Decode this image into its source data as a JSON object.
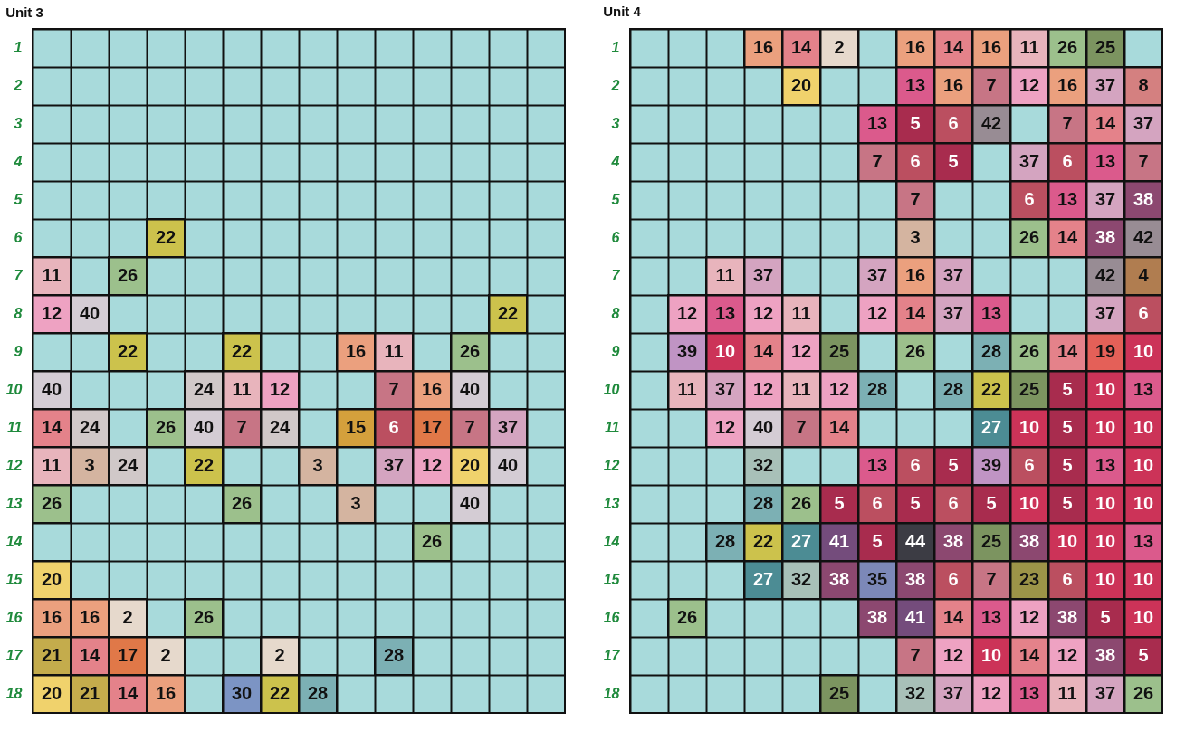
{
  "chart_data": [
    {
      "type": "heatmap",
      "title": "Unit 3",
      "data_labels": true,
      "grid": true,
      "categories": [
        null,
        null,
        null,
        null,
        null,
        null,
        null,
        null,
        null,
        null,
        null,
        null,
        null,
        null
      ],
      "y_categories": [
        "1",
        "2",
        "3",
        "4",
        "5",
        "6",
        "7",
        "8",
        "9",
        "10",
        "11",
        "12",
        "13",
        "14",
        "15",
        "16",
        "17",
        "18"
      ],
      "cells": [
        [
          null,
          null,
          null,
          null,
          null,
          null,
          null,
          null,
          null,
          null,
          null,
          null,
          null,
          null
        ],
        [
          null,
          null,
          null,
          null,
          null,
          null,
          null,
          null,
          null,
          null,
          null,
          null,
          null,
          null
        ],
        [
          null,
          null,
          null,
          null,
          null,
          null,
          null,
          null,
          null,
          null,
          null,
          null,
          null,
          null
        ],
        [
          null,
          null,
          null,
          null,
          null,
          null,
          null,
          null,
          null,
          null,
          null,
          null,
          null,
          null
        ],
        [
          null,
          null,
          null,
          null,
          null,
          null,
          null,
          null,
          null,
          null,
          null,
          null,
          null,
          null
        ],
        [
          null,
          null,
          null,
          22,
          null,
          null,
          null,
          null,
          null,
          null,
          null,
          null,
          null,
          null
        ],
        [
          11,
          null,
          26,
          null,
          null,
          null,
          null,
          null,
          null,
          null,
          null,
          null,
          null,
          null
        ],
        [
          12,
          40,
          null,
          null,
          null,
          null,
          null,
          null,
          null,
          null,
          null,
          null,
          22,
          null
        ],
        [
          null,
          null,
          22,
          null,
          null,
          22,
          null,
          null,
          16,
          11,
          null,
          26,
          null,
          null
        ],
        [
          40,
          null,
          null,
          null,
          24,
          11,
          12,
          null,
          null,
          7,
          16,
          40,
          null,
          null
        ],
        [
          14,
          24,
          null,
          26,
          40,
          7,
          24,
          null,
          15,
          6,
          17,
          7,
          37,
          null
        ],
        [
          11,
          3,
          24,
          null,
          22,
          null,
          null,
          3,
          null,
          37,
          12,
          20,
          40,
          null
        ],
        [
          26,
          null,
          null,
          null,
          null,
          26,
          null,
          null,
          3,
          null,
          null,
          40,
          null,
          null
        ],
        [
          null,
          null,
          null,
          null,
          null,
          null,
          null,
          null,
          null,
          null,
          26,
          null,
          null,
          null
        ],
        [
          20,
          null,
          null,
          null,
          null,
          null,
          null,
          null,
          null,
          null,
          null,
          null,
          null,
          null
        ],
        [
          16,
          16,
          2,
          null,
          26,
          null,
          null,
          null,
          null,
          null,
          null,
          null,
          null,
          null
        ],
        [
          21,
          14,
          17,
          2,
          null,
          null,
          2,
          null,
          null,
          28,
          null,
          null,
          null,
          null
        ],
        [
          20,
          21,
          14,
          16,
          null,
          30,
          22,
          28,
          null,
          null,
          null,
          null,
          null,
          null
        ]
      ],
      "colors": [
        [
          "#a8dadb",
          "#a8dadb",
          "#a8dadb",
          "#a8dadb",
          "#a8dadb",
          "#a8dadb",
          "#a8dadb",
          "#a8dadb",
          "#a8dadb",
          "#a8dadb",
          "#a8dadb",
          "#a8dadb",
          "#a8dadb",
          "#a8dadb"
        ],
        [
          "#a8dadb",
          "#a8dadb",
          "#a8dadb",
          "#a8dadb",
          "#a8dadb",
          "#a8dadb",
          "#a8dadb",
          "#a8dadb",
          "#a8dadb",
          "#a8dadb",
          "#a8dadb",
          "#a8dadb",
          "#a8dadb",
          "#a8dadb"
        ],
        [
          "#a8dadb",
          "#a8dadb",
          "#a8dadb",
          "#a8dadb",
          "#a8dadb",
          "#a8dadb",
          "#a8dadb",
          "#a8dadb",
          "#a8dadb",
          "#a8dadb",
          "#a8dadb",
          "#a8dadb",
          "#a8dadb",
          "#a8dadb"
        ],
        [
          "#a8dadb",
          "#a8dadb",
          "#a8dadb",
          "#a8dadb",
          "#a8dadb",
          "#a8dadb",
          "#a8dadb",
          "#a8dadb",
          "#a8dadb",
          "#a8dadb",
          "#a8dadb",
          "#a8dadb",
          "#a8dadb",
          "#a8dadb"
        ],
        [
          "#a8dadb",
          "#a8dadb",
          "#a8dadb",
          "#a8dadb",
          "#a8dadb",
          "#a8dadb",
          "#a8dadb",
          "#a8dadb",
          "#a8dadb",
          "#a8dadb",
          "#a8dadb",
          "#a8dadb",
          "#a8dadb",
          "#a8dadb"
        ],
        [
          "#a8dadb",
          "#a8dadb",
          "#a8dadb",
          "#ccc24c",
          "#a8dadb",
          "#a8dadb",
          "#a8dadb",
          "#a8dadb",
          "#a8dadb",
          "#a8dadb",
          "#a8dadb",
          "#a8dadb",
          "#a8dadb",
          "#a8dadb"
        ],
        [
          "#e8b4bc",
          "#a8dadb",
          "#9cc08c",
          "#a8dadb",
          "#a8dadb",
          "#a8dadb",
          "#a8dadb",
          "#a8dadb",
          "#a8dadb",
          "#a8dadb",
          "#a8dadb",
          "#a8dadb",
          "#a8dadb",
          "#a8dadb"
        ],
        [
          "#eea2c2",
          "#d4ccd4",
          "#a8dadb",
          "#a8dadb",
          "#a8dadb",
          "#a8dadb",
          "#a8dadb",
          "#a8dadb",
          "#a8dadb",
          "#a8dadb",
          "#a8dadb",
          "#a8dadb",
          "#ccc24c",
          "#a8dadb"
        ],
        [
          "#a8dadb",
          "#a8dadb",
          "#ccc24c",
          "#a8dadb",
          "#a8dadb",
          "#ccc24c",
          "#a8dadb",
          "#a8dadb",
          "#eba07e",
          "#e8b4bc",
          "#a8dadb",
          "#9cc08c",
          "#a8dadb",
          "#a8dadb"
        ],
        [
          "#d4ccd4",
          "#a8dadb",
          "#a8dadb",
          "#a8dadb",
          "#d0c8c8",
          "#e8b4bc",
          "#eea2c2",
          "#a8dadb",
          "#a8dadb",
          "#c77585",
          "#eba07e",
          "#d4ccd4",
          "#a8dadb",
          "#a8dadb"
        ],
        [
          "#e4828a",
          "#d0c8c8",
          "#a8dadb",
          "#9cc08c",
          "#d4ccd4",
          "#c77585",
          "#d0c8c8",
          "#a8dadb",
          "#d4a03c",
          "#bb4f60",
          "#e07848",
          "#c77585",
          "#d4a4c0",
          "#a8dadb"
        ],
        [
          "#e8b4bc",
          "#d4b4a0",
          "#d0c8c8",
          "#a8dadb",
          "#ccc24c",
          "#a8dadb",
          "#a8dadb",
          "#d4b4a0",
          "#a8dadb",
          "#d4a4c0",
          "#eea2c2",
          "#f0d26c",
          "#d4ccd4",
          "#a8dadb"
        ],
        [
          "#9cc08c",
          "#a8dadb",
          "#a8dadb",
          "#a8dadb",
          "#a8dadb",
          "#9cc08c",
          "#a8dadb",
          "#a8dadb",
          "#d4b4a0",
          "#a8dadb",
          "#a8dadb",
          "#d4ccd4",
          "#a8dadb",
          "#a8dadb"
        ],
        [
          "#a8dadb",
          "#a8dadb",
          "#a8dadb",
          "#a8dadb",
          "#a8dadb",
          "#a8dadb",
          "#a8dadb",
          "#a8dadb",
          "#a8dadb",
          "#a8dadb",
          "#9cc08c",
          "#a8dadb",
          "#a8dadb",
          "#a8dadb"
        ],
        [
          "#f0d26c",
          "#a8dadb",
          "#a8dadb",
          "#a8dadb",
          "#a8dadb",
          "#a8dadb",
          "#a8dadb",
          "#a8dadb",
          "#a8dadb",
          "#a8dadb",
          "#a8dadb",
          "#a8dadb",
          "#a8dadb",
          "#a8dadb"
        ],
        [
          "#eba07e",
          "#eba07e",
          "#e6d9cc",
          "#a8dadb",
          "#9cc08c",
          "#a8dadb",
          "#a8dadb",
          "#a8dadb",
          "#a8dadb",
          "#a8dadb",
          "#a8dadb",
          "#a8dadb",
          "#a8dadb",
          "#a8dadb"
        ],
        [
          "#c4ac4c",
          "#e4828a",
          "#e07848",
          "#e6d9cc",
          "#a8dadb",
          "#a8dadb",
          "#e6d9cc",
          "#a8dadb",
          "#a8dadb",
          "#7cb0b4",
          "#a8dadb",
          "#a8dadb",
          "#a8dadb",
          "#a8dadb"
        ],
        [
          "#f0d26c",
          "#c4ac4c",
          "#e4828a",
          "#eba07e",
          "#a8dadb",
          "#7c94c4",
          "#ccc24c",
          "#7cb0b4",
          "#a8dadb",
          "#a8dadb",
          "#a8dadb",
          "#a8dadb",
          "#a8dadb",
          "#a8dadb"
        ]
      ]
    },
    {
      "type": "heatmap",
      "title": "Unit 4",
      "data_labels": true,
      "grid": true,
      "categories": [
        null,
        null,
        null,
        null,
        null,
        null,
        null,
        null,
        null,
        null,
        null,
        null,
        null,
        null
      ],
      "y_categories": [
        "1",
        "2",
        "3",
        "4",
        "5",
        "6",
        "7",
        "8",
        "9",
        "10",
        "11",
        "12",
        "13",
        "14",
        "15",
        "16",
        "17",
        "18"
      ],
      "cells": [
        [
          null,
          null,
          null,
          16,
          14,
          2,
          null,
          16,
          14,
          16,
          11,
          26,
          25,
          null
        ],
        [
          null,
          null,
          null,
          null,
          20,
          null,
          null,
          13,
          16,
          7,
          12,
          16,
          37,
          8
        ],
        [
          null,
          null,
          null,
          null,
          null,
          null,
          13,
          5,
          6,
          42,
          null,
          7,
          14,
          37
        ],
        [
          null,
          null,
          null,
          null,
          null,
          null,
          7,
          6,
          5,
          null,
          37,
          6,
          13,
          7
        ],
        [
          null,
          null,
          null,
          null,
          null,
          null,
          null,
          7,
          null,
          null,
          6,
          13,
          37,
          38
        ],
        [
          null,
          null,
          null,
          null,
          null,
          null,
          null,
          3,
          null,
          null,
          26,
          14,
          38,
          42
        ],
        [
          null,
          null,
          11,
          37,
          null,
          null,
          37,
          16,
          37,
          null,
          null,
          null,
          42,
          4
        ],
        [
          null,
          12,
          13,
          12,
          11,
          null,
          12,
          14,
          37,
          13,
          null,
          null,
          37,
          6
        ],
        [
          null,
          39,
          10,
          14,
          12,
          25,
          null,
          26,
          null,
          28,
          26,
          14,
          19,
          10
        ],
        [
          null,
          11,
          37,
          12,
          11,
          12,
          28,
          null,
          28,
          22,
          25,
          5,
          10,
          13
        ],
        [
          null,
          null,
          12,
          40,
          7,
          14,
          null,
          null,
          null,
          27,
          10,
          5,
          10,
          10
        ],
        [
          null,
          null,
          null,
          32,
          null,
          null,
          13,
          6,
          5,
          39,
          6,
          5,
          13,
          10
        ],
        [
          null,
          null,
          null,
          28,
          26,
          5,
          6,
          5,
          6,
          5,
          10,
          5,
          10,
          10
        ],
        [
          null,
          null,
          28,
          22,
          27,
          41,
          5,
          44,
          38,
          25,
          38,
          10,
          10,
          13
        ],
        [
          null,
          null,
          null,
          27,
          32,
          38,
          35,
          38,
          6,
          7,
          23,
          6,
          10,
          10
        ],
        [
          null,
          26,
          null,
          null,
          null,
          null,
          38,
          41,
          14,
          13,
          12,
          38,
          5,
          10
        ],
        [
          null,
          null,
          null,
          null,
          null,
          null,
          null,
          7,
          12,
          10,
          14,
          12,
          38,
          5
        ],
        [
          null,
          null,
          null,
          null,
          null,
          25,
          null,
          32,
          37,
          12,
          13,
          11,
          37,
          26
        ]
      ],
      "colors": [
        [
          "#a8dadb",
          "#a8dadb",
          "#a8dadb",
          "#eba07e",
          "#e4828a",
          "#e6d9cc",
          "#a8dadb",
          "#eba07e",
          "#e4828a",
          "#eba07e",
          "#e8b4bc",
          "#9cc08c",
          "#7c9460",
          "#a8dadb"
        ],
        [
          "#a8dadb",
          "#a8dadb",
          "#a8dadb",
          "#a8dadb",
          "#f0d26c",
          "#a8dadb",
          "#a8dadb",
          "#db5a8c",
          "#eba07e",
          "#c77585",
          "#eea2c2",
          "#eba07e",
          "#d4a4c0",
          "#d48080"
        ],
        [
          "#a8dadb",
          "#a8dadb",
          "#a8dadb",
          "#a8dadb",
          "#a8dadb",
          "#a8dadb",
          "#db5a8c",
          "#a82c4e",
          "#bb4f60",
          "#988c94",
          "#a8dadb",
          "#c77585",
          "#e4828a",
          "#d4a4c0"
        ],
        [
          "#a8dadb",
          "#a8dadb",
          "#a8dadb",
          "#a8dadb",
          "#a8dadb",
          "#a8dadb",
          "#c77585",
          "#bb4f60",
          "#a82c4e",
          "#a8dadb",
          "#d4a4c0",
          "#bb4f60",
          "#db5a8c",
          "#c77585"
        ],
        [
          "#a8dadb",
          "#a8dadb",
          "#a8dadb",
          "#a8dadb",
          "#a8dadb",
          "#a8dadb",
          "#a8dadb",
          "#c77585",
          "#a8dadb",
          "#a8dadb",
          "#bb4f60",
          "#db5a8c",
          "#d4a4c0",
          "#8c4870"
        ],
        [
          "#a8dadb",
          "#a8dadb",
          "#a8dadb",
          "#a8dadb",
          "#a8dadb",
          "#a8dadb",
          "#a8dadb",
          "#d4b4a0",
          "#a8dadb",
          "#a8dadb",
          "#9cc08c",
          "#e4828a",
          "#8c4870",
          "#988c94"
        ],
        [
          "#a8dadb",
          "#a8dadb",
          "#e8b4bc",
          "#d4a4c0",
          "#a8dadb",
          "#a8dadb",
          "#d4a4c0",
          "#eba07e",
          "#d4a4c0",
          "#a8dadb",
          "#a8dadb",
          "#a8dadb",
          "#988c94",
          "#b07d50"
        ],
        [
          "#a8dadb",
          "#eea2c2",
          "#db5a8c",
          "#eea2c2",
          "#e8b4bc",
          "#a8dadb",
          "#eea2c2",
          "#e4828a",
          "#d4a4c0",
          "#db5a8c",
          "#a8dadb",
          "#a8dadb",
          "#d4a4c0",
          "#bb4f60"
        ],
        [
          "#a8dadb",
          "#c094c4",
          "#cc3358",
          "#e4828a",
          "#eea2c2",
          "#7c9460",
          "#a8dadb",
          "#9cc08c",
          "#a8dadb",
          "#7cb0b4",
          "#9cc08c",
          "#e4828a",
          "#e46058",
          "#cc3358"
        ],
        [
          "#a8dadb",
          "#e8b4bc",
          "#d4a4c0",
          "#eea2c2",
          "#e8b4bc",
          "#eea2c2",
          "#7cb0b4",
          "#a8dadb",
          "#7cb0b4",
          "#ccc24c",
          "#7c9460",
          "#a82c4e",
          "#cc3358",
          "#db5a8c"
        ],
        [
          "#a8dadb",
          "#a8dadb",
          "#eea2c2",
          "#d4ccd4",
          "#c77585",
          "#e4828a",
          "#a8dadb",
          "#a8dadb",
          "#a8dadb",
          "#4c8c94",
          "#cc3358",
          "#a82c4e",
          "#cc3358",
          "#cc3358"
        ],
        [
          "#a8dadb",
          "#a8dadb",
          "#a8dadb",
          "#a8c0b8",
          "#a8dadb",
          "#a8dadb",
          "#db5a8c",
          "#bb4f60",
          "#a82c4e",
          "#c094c4",
          "#bb4f60",
          "#a82c4e",
          "#db5a8c",
          "#cc3358"
        ],
        [
          "#a8dadb",
          "#a8dadb",
          "#a8dadb",
          "#7cb0b4",
          "#9cc08c",
          "#a82c4e",
          "#bb4f60",
          "#a82c4e",
          "#bb4f60",
          "#a82c4e",
          "#cc3358",
          "#a82c4e",
          "#cc3358",
          "#cc3358"
        ],
        [
          "#a8dadb",
          "#a8dadb",
          "#7cb0b4",
          "#ccc24c",
          "#4c8c94",
          "#744c7c",
          "#a82c4e",
          "#3c3c44",
          "#8c4870",
          "#7c9460",
          "#8c4870",
          "#cc3358",
          "#cc3358",
          "#db5a8c"
        ],
        [
          "#a8dadb",
          "#a8dadb",
          "#a8dadb",
          "#4c8c94",
          "#a8c0b8",
          "#8c4870",
          "#7c88b8",
          "#8c4870",
          "#bb4f60",
          "#c77585",
          "#9c9448",
          "#bb4f60",
          "#cc3358",
          "#cc3358"
        ],
        [
          "#a8dadb",
          "#9cc08c",
          "#a8dadb",
          "#a8dadb",
          "#a8dadb",
          "#a8dadb",
          "#8c4870",
          "#744c7c",
          "#e4828a",
          "#db5a8c",
          "#eea2c2",
          "#8c4870",
          "#a82c4e",
          "#cc3358"
        ],
        [
          "#a8dadb",
          "#a8dadb",
          "#a8dadb",
          "#a8dadb",
          "#a8dadb",
          "#a8dadb",
          "#a8dadb",
          "#c77585",
          "#eea2c2",
          "#cc3358",
          "#e4828a",
          "#eea2c2",
          "#8c4870",
          "#a82c4e"
        ],
        [
          "#a8dadb",
          "#a8dadb",
          "#a8dadb",
          "#a8dadb",
          "#a8dadb",
          "#7c9460",
          "#a8dadb",
          "#a8c0b8",
          "#d4a4c0",
          "#eea2c2",
          "#db5a8c",
          "#e8b4bc",
          "#d4a4c0",
          "#9cc08c"
        ]
      ]
    }
  ]
}
